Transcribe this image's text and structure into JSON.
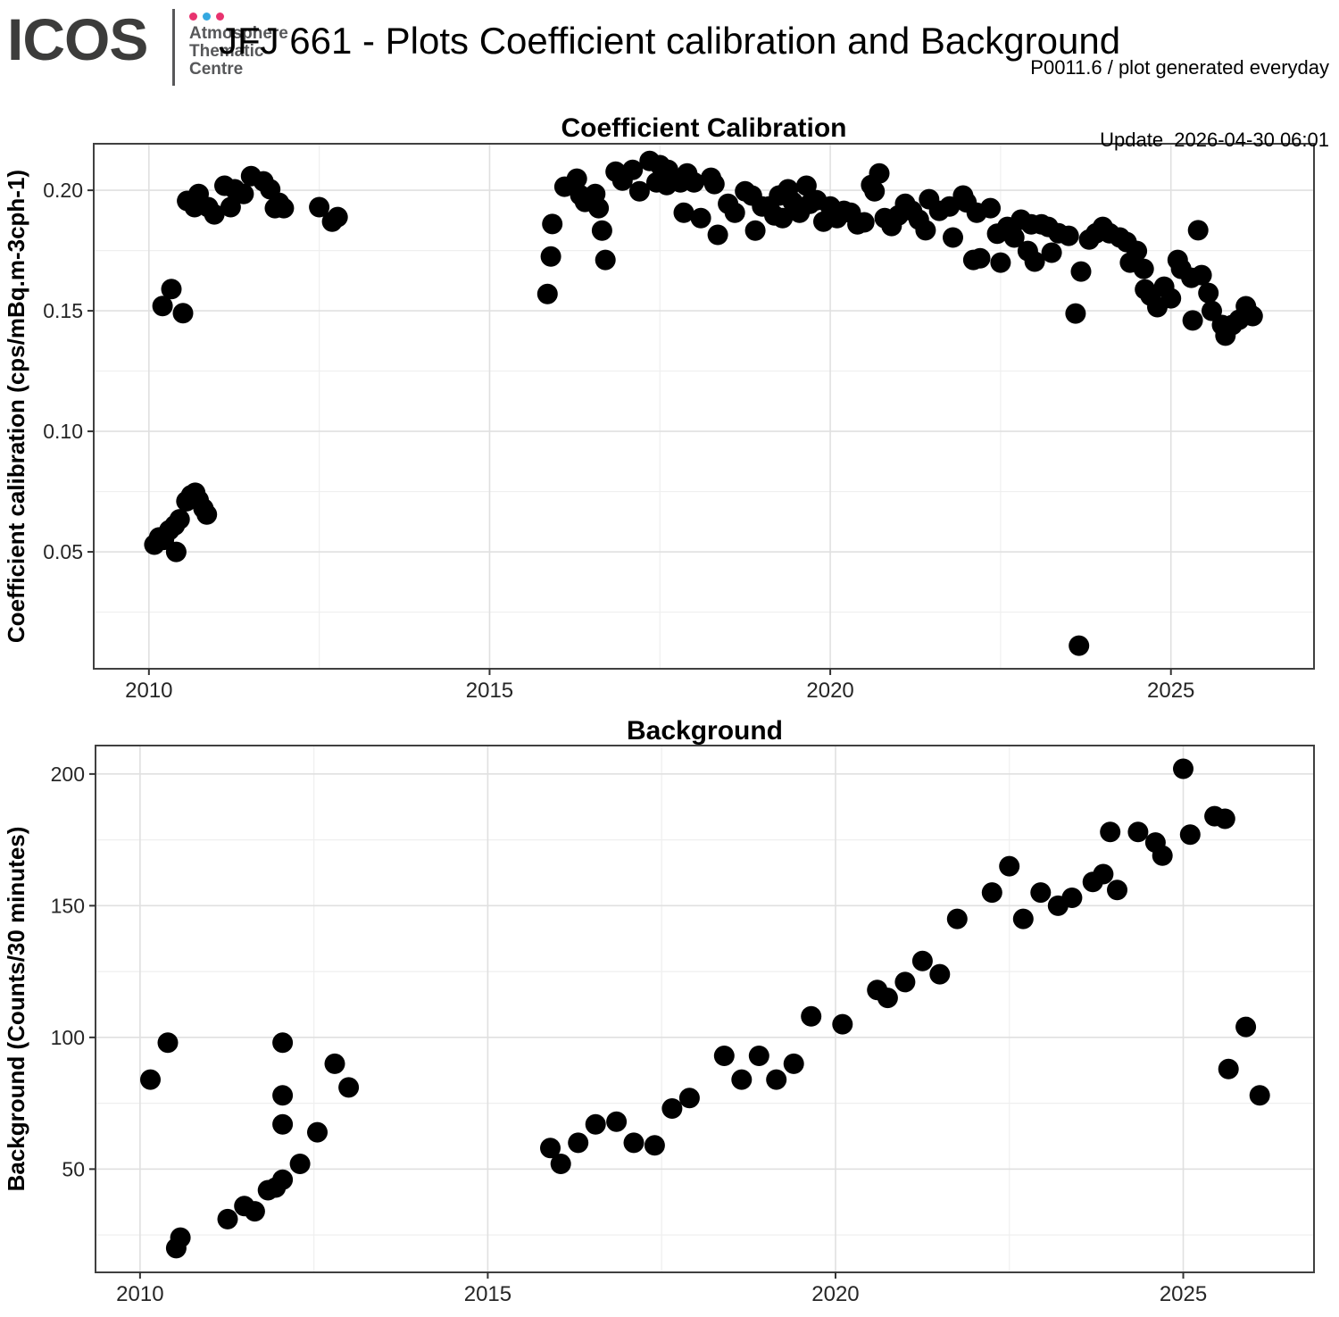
{
  "header": {
    "logo_text": "ICOS",
    "brand_lines": [
      "Atmosphere",
      "Thematic",
      "Centre"
    ],
    "brand_dot_colors": [
      "#e8336f",
      "#35a8e0",
      "#e8336f"
    ],
    "title": "JFJ 661 - Plots Coefficient calibration and Background",
    "info_line1": "P0011.6 / plot generated everyday",
    "info_line2": "Update  2026-04-30 06:01"
  },
  "colors": {
    "point": "#000000",
    "grid_major": "#e0e0e0",
    "grid_minor": "#efefef",
    "panel_border": "#404040",
    "tick": "#333333",
    "tick_label": "#262626",
    "title_text": "#000000",
    "background": "#ffffff"
  },
  "chart_data": [
    {
      "type": "scatter",
      "title": "Coefficient Calibration",
      "xlabel": "",
      "ylabel": "Coefficient calibration (cps/mBq.m-3cph-1)",
      "xlim": [
        2009.19,
        2027.1
      ],
      "ylim": [
        0.0015,
        0.2193
      ],
      "xticks": [
        2010,
        2015,
        2020,
        2025
      ],
      "xtick_labels": [
        "2010",
        "2015",
        "2020",
        "2025"
      ],
      "xminor": [
        2012.5,
        2017.5,
        2022.5
      ],
      "yticks": [
        0.05,
        0.1,
        0.15,
        0.2
      ],
      "ytick_labels": [
        "0.05",
        "0.10",
        "0.15",
        "0.20"
      ],
      "yminor": [
        0.025,
        0.075,
        0.125,
        0.175
      ],
      "grid": true,
      "legend": "none",
      "points": [
        [
          2010.56,
          0.1956
        ],
        [
          2010.67,
          0.193
        ],
        [
          2010.73,
          0.1985
        ],
        [
          2010.87,
          0.193
        ],
        [
          2010.96,
          0.19
        ],
        [
          2011.11,
          0.2019
        ],
        [
          2011.2,
          0.193
        ],
        [
          2011.26,
          0.2004
        ],
        [
          2011.39,
          0.1985
        ],
        [
          2011.5,
          0.2059
        ],
        [
          2011.68,
          0.2037
        ],
        [
          2011.78,
          0.2004
        ],
        [
          2011.85,
          0.1926
        ],
        [
          2011.91,
          0.1948
        ],
        [
          2011.98,
          0.1926
        ],
        [
          2012.5,
          0.193
        ],
        [
          2012.69,
          0.187
        ],
        [
          2012.77,
          0.1889
        ],
        [
          2010.2,
          0.152
        ],
        [
          2010.33,
          0.159
        ],
        [
          2010.5,
          0.149
        ],
        [
          2010.08,
          0.053
        ],
        [
          2010.15,
          0.056
        ],
        [
          2010.22,
          0.055
        ],
        [
          2010.3,
          0.059
        ],
        [
          2010.38,
          0.061
        ],
        [
          2010.4,
          0.05
        ],
        [
          2010.45,
          0.0635
        ],
        [
          2010.55,
          0.071
        ],
        [
          2010.62,
          0.0735
        ],
        [
          2010.68,
          0.0745
        ],
        [
          2010.73,
          0.0715
        ],
        [
          2010.8,
          0.068
        ],
        [
          2010.85,
          0.0655
        ],
        [
          2015.85,
          0.157
        ],
        [
          2015.9,
          0.1725
        ],
        [
          2015.92,
          0.186
        ],
        [
          2016.1,
          0.2015
        ],
        [
          2016.28,
          0.2048
        ],
        [
          2016.33,
          0.198
        ],
        [
          2016.4,
          0.1952
        ],
        [
          2016.55,
          0.1985
        ],
        [
          2016.6,
          0.1926
        ],
        [
          2016.65,
          0.1833
        ],
        [
          2016.7,
          0.1711
        ],
        [
          2016.85,
          0.2077
        ],
        [
          2016.95,
          0.204
        ],
        [
          2017.1,
          0.2085
        ],
        [
          2017.2,
          0.1996
        ],
        [
          2017.35,
          0.2122
        ],
        [
          2017.45,
          0.2033
        ],
        [
          2017.5,
          0.2104
        ],
        [
          2017.6,
          0.2022
        ],
        [
          2017.62,
          0.2085
        ],
        [
          2017.8,
          0.2033
        ],
        [
          2017.85,
          0.1907
        ],
        [
          2017.9,
          0.207
        ],
        [
          2018.0,
          0.2033
        ],
        [
          2018.1,
          0.1885
        ],
        [
          2018.25,
          0.2052
        ],
        [
          2018.3,
          0.2026
        ],
        [
          2018.35,
          0.1815
        ],
        [
          2018.5,
          0.1944
        ],
        [
          2018.6,
          0.1907
        ],
        [
          2018.75,
          0.1996
        ],
        [
          2018.85,
          0.1978
        ],
        [
          2018.9,
          0.1833
        ],
        [
          2019.0,
          0.1933
        ],
        [
          2019.1,
          0.1933
        ],
        [
          2019.18,
          0.1896
        ],
        [
          2019.25,
          0.1978
        ],
        [
          2019.3,
          0.1885
        ],
        [
          2019.38,
          0.2004
        ],
        [
          2019.45,
          0.1952
        ],
        [
          2019.55,
          0.1907
        ],
        [
          2019.65,
          0.2019
        ],
        [
          2019.7,
          0.1944
        ],
        [
          2019.8,
          0.1959
        ],
        [
          2019.9,
          0.187
        ],
        [
          2020.0,
          0.1933
        ],
        [
          2020.1,
          0.1885
        ],
        [
          2020.2,
          0.1915
        ],
        [
          2020.3,
          0.1907
        ],
        [
          2020.4,
          0.1859
        ],
        [
          2020.5,
          0.1867
        ],
        [
          2020.6,
          0.2022
        ],
        [
          2020.65,
          0.1996
        ],
        [
          2020.72,
          0.207
        ],
        [
          2020.8,
          0.1885
        ],
        [
          2020.9,
          0.1852
        ],
        [
          2021.0,
          0.1896
        ],
        [
          2021.1,
          0.1944
        ],
        [
          2021.2,
          0.1915
        ],
        [
          2021.3,
          0.1878
        ],
        [
          2021.4,
          0.1834
        ],
        [
          2021.45,
          0.1963
        ],
        [
          2021.6,
          0.1915
        ],
        [
          2021.75,
          0.1933
        ],
        [
          2021.8,
          0.1804
        ],
        [
          2021.95,
          0.1978
        ],
        [
          2022.0,
          0.195
        ],
        [
          2022.1,
          0.1711
        ],
        [
          2022.15,
          0.1907
        ],
        [
          2022.2,
          0.1718
        ],
        [
          2022.35,
          0.1926
        ],
        [
          2022.45,
          0.182
        ],
        [
          2022.5,
          0.17
        ],
        [
          2022.6,
          0.1848
        ],
        [
          2022.7,
          0.1804
        ],
        [
          2022.8,
          0.1878
        ],
        [
          2022.9,
          0.1748
        ],
        [
          2022.95,
          0.1859
        ],
        [
          2023.0,
          0.1704
        ],
        [
          2023.1,
          0.1859
        ],
        [
          2023.2,
          0.1848
        ],
        [
          2023.25,
          0.1741
        ],
        [
          2023.35,
          0.1822
        ],
        [
          2023.5,
          0.1811
        ],
        [
          2023.6,
          0.1489
        ],
        [
          2023.65,
          0.0111
        ],
        [
          2023.68,
          0.1663
        ],
        [
          2023.8,
          0.1796
        ],
        [
          2023.9,
          0.1822
        ],
        [
          2024.0,
          0.1848
        ],
        [
          2024.1,
          0.1822
        ],
        [
          2024.25,
          0.1804
        ],
        [
          2024.35,
          0.1785
        ],
        [
          2024.4,
          0.17
        ],
        [
          2024.5,
          0.1748
        ],
        [
          2024.6,
          0.1674
        ],
        [
          2024.62,
          0.1589
        ],
        [
          2024.7,
          0.1563
        ],
        [
          2024.8,
          0.1515
        ],
        [
          2024.9,
          0.16
        ],
        [
          2025.0,
          0.1552
        ],
        [
          2025.1,
          0.1711
        ],
        [
          2025.15,
          0.1674
        ],
        [
          2025.3,
          0.1637
        ],
        [
          2025.32,
          0.146
        ],
        [
          2025.4,
          0.1834
        ],
        [
          2025.45,
          0.1648
        ],
        [
          2025.55,
          0.1574
        ],
        [
          2025.6,
          0.15
        ],
        [
          2025.75,
          0.1441
        ],
        [
          2025.8,
          0.1397
        ],
        [
          2025.9,
          0.1441
        ],
        [
          2026.0,
          0.1463
        ],
        [
          2026.1,
          0.1519
        ],
        [
          2026.15,
          0.1489
        ],
        [
          2026.2,
          0.1478
        ]
      ]
    },
    {
      "type": "scatter",
      "title": "Background",
      "xlabel": "",
      "ylabel": "Background (Counts/30 minutes)",
      "xlim": [
        2009.36,
        2026.88
      ],
      "ylim": [
        10.8,
        210.8
      ],
      "xticks": [
        2010,
        2015,
        2020,
        2025
      ],
      "xtick_labels": [
        "2010",
        "2015",
        "2020",
        "2025"
      ],
      "xminor": [
        2012.5,
        2017.5,
        2022.5
      ],
      "yticks": [
        50,
        100,
        150,
        200
      ],
      "ytick_labels": [
        "50",
        "100",
        "150",
        "200"
      ],
      "yminor": [
        25,
        75,
        125,
        175
      ],
      "grid": true,
      "legend": "none",
      "points": [
        [
          2010.15,
          84
        ],
        [
          2010.4,
          98
        ],
        [
          2010.52,
          20
        ],
        [
          2010.58,
          24
        ],
        [
          2011.26,
          31
        ],
        [
          2011.5,
          36
        ],
        [
          2011.65,
          34
        ],
        [
          2011.84,
          42
        ],
        [
          2011.95,
          43
        ],
        [
          2012.05,
          46
        ],
        [
          2012.05,
          67
        ],
        [
          2012.05,
          78
        ],
        [
          2012.05,
          98
        ],
        [
          2012.3,
          52
        ],
        [
          2012.55,
          64
        ],
        [
          2012.8,
          90
        ],
        [
          2013.0,
          81
        ],
        [
          2015.9,
          58
        ],
        [
          2016.05,
          52
        ],
        [
          2016.3,
          60
        ],
        [
          2016.55,
          67
        ],
        [
          2016.85,
          68
        ],
        [
          2017.1,
          60
        ],
        [
          2017.4,
          59
        ],
        [
          2017.65,
          73
        ],
        [
          2017.9,
          77
        ],
        [
          2018.4,
          93
        ],
        [
          2018.65,
          84
        ],
        [
          2018.9,
          93
        ],
        [
          2019.15,
          84
        ],
        [
          2019.4,
          90
        ],
        [
          2019.65,
          108
        ],
        [
          2020.1,
          105
        ],
        [
          2020.6,
          118
        ],
        [
          2020.75,
          115
        ],
        [
          2021.0,
          121
        ],
        [
          2021.25,
          129
        ],
        [
          2021.5,
          124
        ],
        [
          2021.75,
          145
        ],
        [
          2022.25,
          155
        ],
        [
          2022.5,
          165
        ],
        [
          2022.7,
          145
        ],
        [
          2022.95,
          155
        ],
        [
          2023.2,
          150
        ],
        [
          2023.4,
          153
        ],
        [
          2023.7,
          159
        ],
        [
          2023.85,
          162
        ],
        [
          2023.95,
          178
        ],
        [
          2024.05,
          156
        ],
        [
          2024.35,
          178
        ],
        [
          2024.6,
          174
        ],
        [
          2024.7,
          169
        ],
        [
          2025.0,
          202
        ],
        [
          2025.1,
          177
        ],
        [
          2025.45,
          184
        ],
        [
          2025.6,
          183
        ],
        [
          2025.65,
          88
        ],
        [
          2025.9,
          104
        ],
        [
          2026.1,
          78
        ]
      ]
    }
  ]
}
